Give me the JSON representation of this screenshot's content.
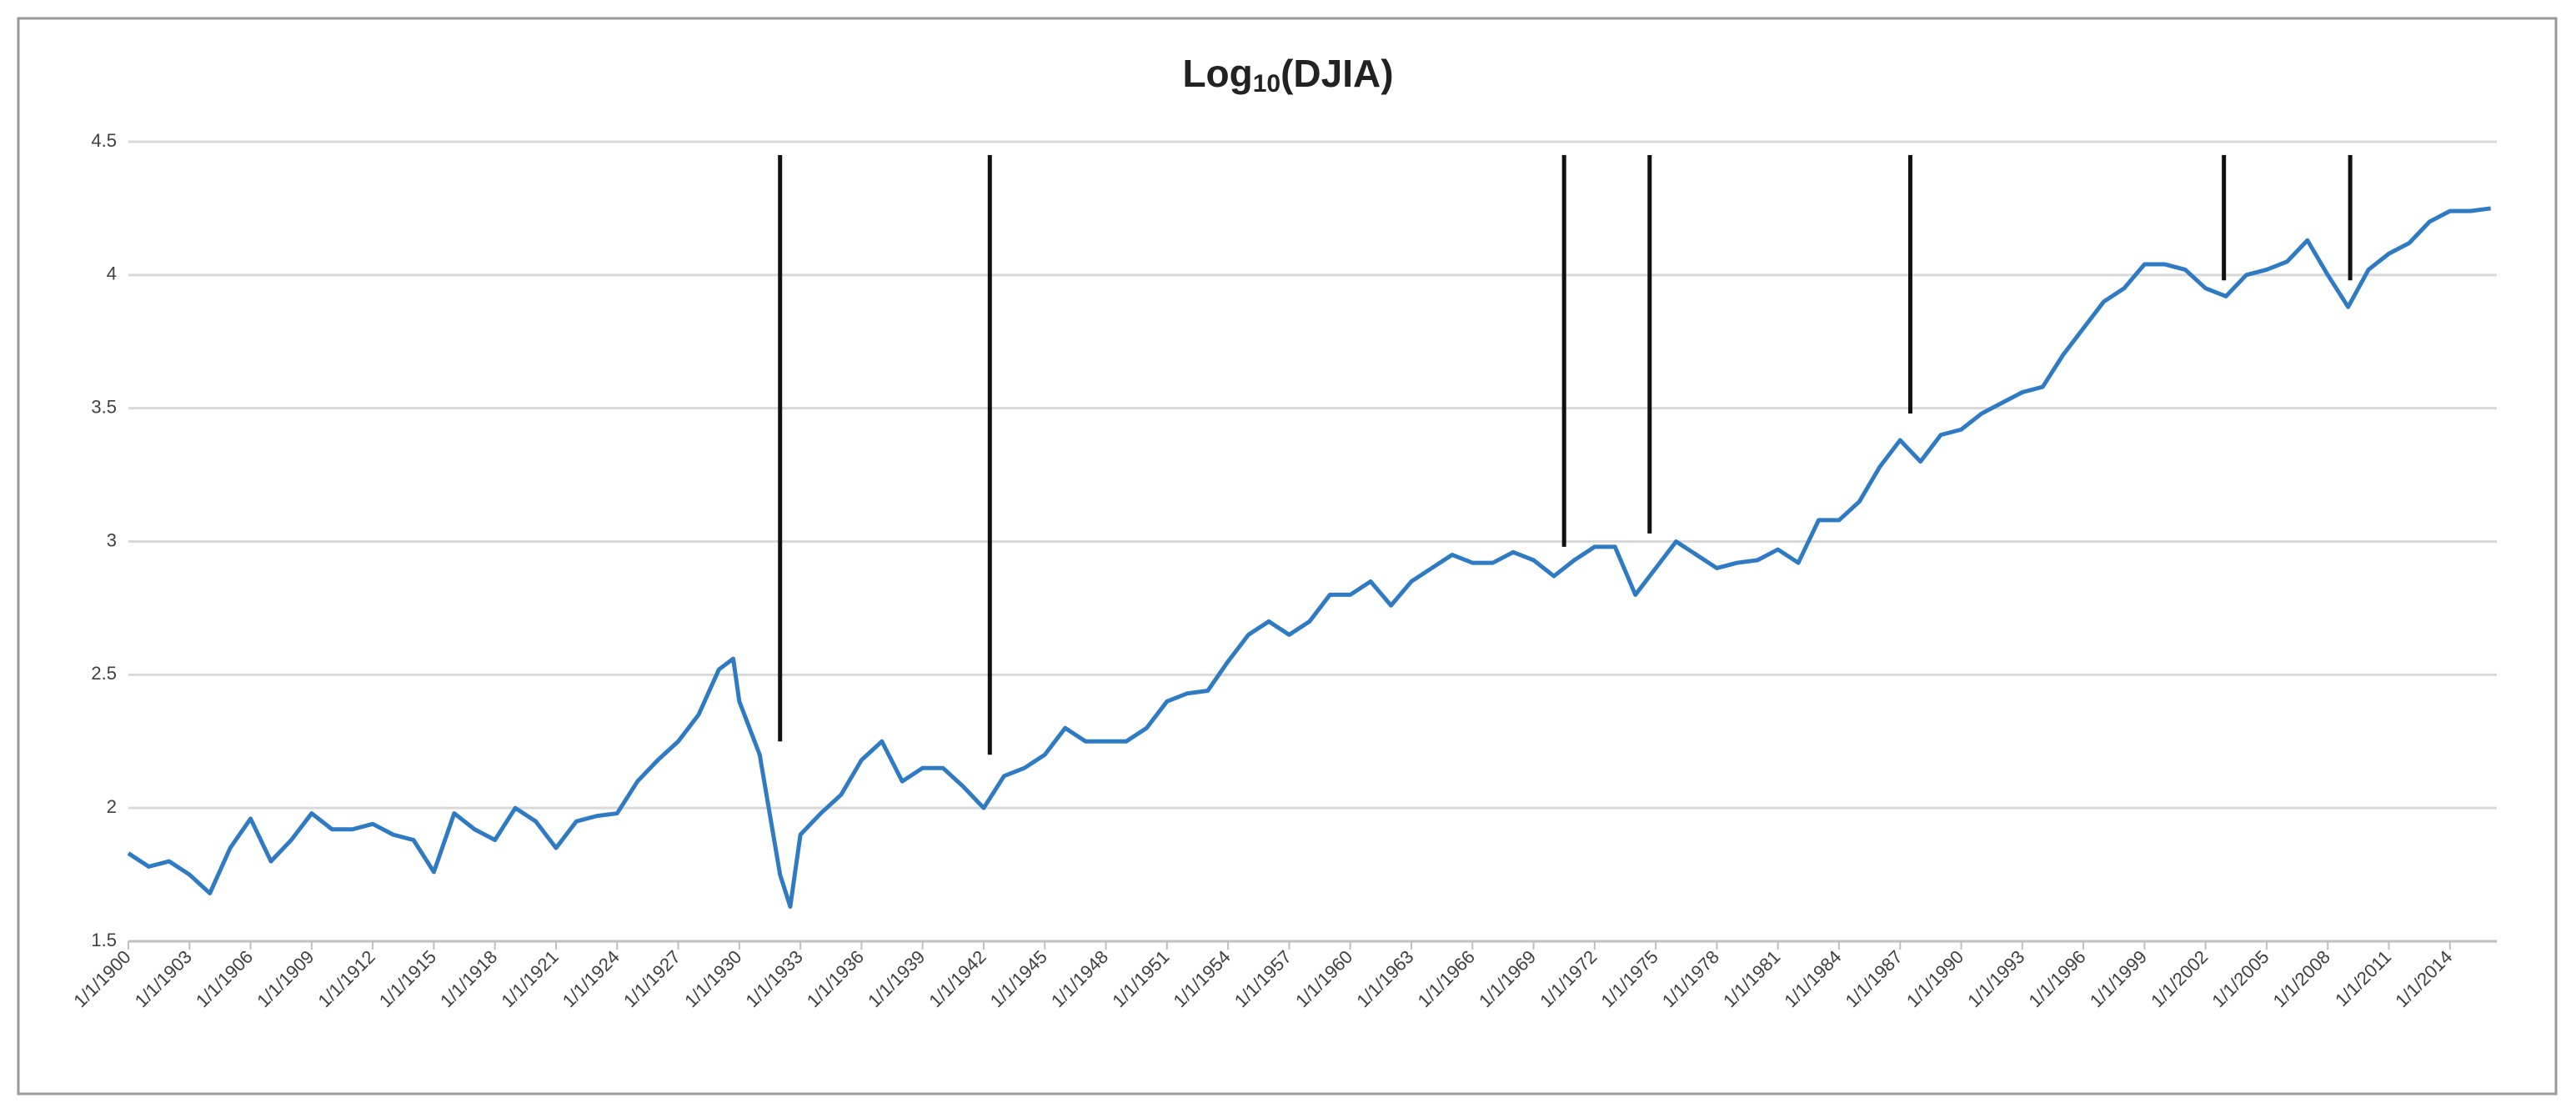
{
  "chart_data": {
    "type": "line",
    "title": {
      "main": "Log",
      "subscript": "10",
      "rest": "(DJIA)"
    },
    "x": [
      1900,
      1901,
      1902,
      1903,
      1904,
      1905,
      1906,
      1907,
      1908,
      1909,
      1910,
      1911,
      1912,
      1913,
      1914,
      1915,
      1916,
      1917,
      1918,
      1919,
      1920,
      1921,
      1922,
      1923,
      1924,
      1925,
      1926,
      1927,
      1928,
      1929,
      1929.7,
      1930,
      1931,
      1932,
      1932.5,
      1933,
      1934,
      1935,
      1936,
      1937,
      1938,
      1939,
      1940,
      1941,
      1942,
      1943,
      1944,
      1945,
      1946,
      1947,
      1948,
      1949,
      1950,
      1951,
      1952,
      1953,
      1954,
      1955,
      1956,
      1957,
      1958,
      1959,
      1960,
      1961,
      1962,
      1963,
      1964,
      1965,
      1966,
      1967,
      1968,
      1969,
      1970,
      1971,
      1972,
      1973,
      1974,
      1975,
      1976,
      1977,
      1978,
      1979,
      1980,
      1981,
      1982,
      1983,
      1984,
      1985,
      1986,
      1987,
      1988,
      1989,
      1990,
      1991,
      1992,
      1993,
      1994,
      1995,
      1996,
      1997,
      1998,
      1999,
      2000,
      2001,
      2002,
      2003,
      2004,
      2005,
      2006,
      2007,
      2008,
      2009,
      2010,
      2011,
      2012,
      2013,
      2014,
      2015,
      2016
    ],
    "series": [
      {
        "name": "Log10(DJIA)",
        "color": "#2e7bc4",
        "values": [
          1.83,
          1.78,
          1.8,
          1.75,
          1.68,
          1.85,
          1.96,
          1.8,
          1.88,
          1.98,
          1.92,
          1.92,
          1.94,
          1.9,
          1.88,
          1.76,
          1.98,
          1.92,
          1.88,
          2.0,
          1.95,
          1.85,
          1.95,
          1.97,
          1.98,
          2.1,
          2.18,
          2.25,
          2.35,
          2.52,
          2.56,
          2.4,
          2.2,
          1.75,
          1.63,
          1.9,
          1.98,
          2.05,
          2.18,
          2.25,
          2.1,
          2.15,
          2.15,
          2.08,
          2.0,
          2.12,
          2.15,
          2.2,
          2.3,
          2.25,
          2.25,
          2.25,
          2.3,
          2.4,
          2.43,
          2.44,
          2.55,
          2.65,
          2.7,
          2.65,
          2.7,
          2.8,
          2.8,
          2.85,
          2.76,
          2.85,
          2.9,
          2.95,
          2.92,
          2.92,
          2.96,
          2.93,
          2.87,
          2.93,
          2.98,
          2.98,
          2.8,
          2.9,
          3.0,
          2.95,
          2.9,
          2.92,
          2.93,
          2.97,
          2.92,
          3.08,
          3.08,
          3.15,
          3.28,
          3.38,
          3.3,
          3.4,
          3.42,
          3.48,
          3.52,
          3.56,
          3.58,
          3.7,
          3.8,
          3.9,
          3.95,
          4.04,
          4.04,
          4.02,
          3.95,
          3.92,
          4.0,
          4.02,
          4.05,
          4.13,
          4.0,
          3.88,
          4.02,
          4.08,
          4.12,
          4.2,
          4.24,
          4.24,
          4.25
        ]
      }
    ],
    "vlines": [
      {
        "x": 1932,
        "y": [
          4.45,
          2.25
        ]
      },
      {
        "x": 1942.3,
        "y": [
          4.45,
          2.2
        ]
      },
      {
        "x": 1970.5,
        "y": [
          4.45,
          2.98
        ]
      },
      {
        "x": 1974.7,
        "y": [
          4.45,
          3.03
        ]
      },
      {
        "x": 1987.5,
        "y": [
          4.45,
          3.48
        ]
      },
      {
        "x": 2002.9,
        "y": [
          4.45,
          3.98
        ]
      },
      {
        "x": 2009.1,
        "y": [
          4.45,
          3.98
        ]
      }
    ],
    "xlim": [
      1900,
      2016.3
    ],
    "xticks": [
      {
        "value": 1900,
        "label": "1/1/1900"
      },
      {
        "value": 1903,
        "label": "1/1/1903"
      },
      {
        "value": 1906,
        "label": "1/1/1906"
      },
      {
        "value": 1909,
        "label": "1/1/1909"
      },
      {
        "value": 1912,
        "label": "1/1/1912"
      },
      {
        "value": 1915,
        "label": "1/1/1915"
      },
      {
        "value": 1918,
        "label": "1/1/1918"
      },
      {
        "value": 1921,
        "label": "1/1/1921"
      },
      {
        "value": 1924,
        "label": "1/1/1924"
      },
      {
        "value": 1927,
        "label": "1/1/1927"
      },
      {
        "value": 1930,
        "label": "1/1/1930"
      },
      {
        "value": 1933,
        "label": "1/1/1933"
      },
      {
        "value": 1936,
        "label": "1/1/1936"
      },
      {
        "value": 1939,
        "label": "1/1/1939"
      },
      {
        "value": 1942,
        "label": "1/1/1942"
      },
      {
        "value": 1945,
        "label": "1/1/1945"
      },
      {
        "value": 1948,
        "label": "1/1/1948"
      },
      {
        "value": 1951,
        "label": "1/1/1951"
      },
      {
        "value": 1954,
        "label": "1/1/1954"
      },
      {
        "value": 1957,
        "label": "1/1/1957"
      },
      {
        "value": 1960,
        "label": "1/1/1960"
      },
      {
        "value": 1963,
        "label": "1/1/1963"
      },
      {
        "value": 1966,
        "label": "1/1/1966"
      },
      {
        "value": 1969,
        "label": "1/1/1969"
      },
      {
        "value": 1972,
        "label": "1/1/1972"
      },
      {
        "value": 1975,
        "label": "1/1/1975"
      },
      {
        "value": 1978,
        "label": "1/1/1978"
      },
      {
        "value": 1981,
        "label": "1/1/1981"
      },
      {
        "value": 1984,
        "label": "1/1/1984"
      },
      {
        "value": 1987,
        "label": "1/1/1987"
      },
      {
        "value": 1990,
        "label": "1/1/1990"
      },
      {
        "value": 1993,
        "label": "1/1/1993"
      },
      {
        "value": 1996,
        "label": "1/1/1996"
      },
      {
        "value": 1999,
        "label": "1/1/1999"
      },
      {
        "value": 2002,
        "label": "1/1/2002"
      },
      {
        "value": 2005,
        "label": "1/1/2005"
      },
      {
        "value": 2008,
        "label": "1/1/2008"
      },
      {
        "value": 2011,
        "label": "1/1/2011"
      },
      {
        "value": 2014,
        "label": "1/1/2014"
      }
    ],
    "ylim": [
      1.5,
      4.5
    ],
    "yticks": [
      1.5,
      2,
      2.5,
      3,
      3.5,
      4,
      4.5
    ],
    "grid": true
  }
}
